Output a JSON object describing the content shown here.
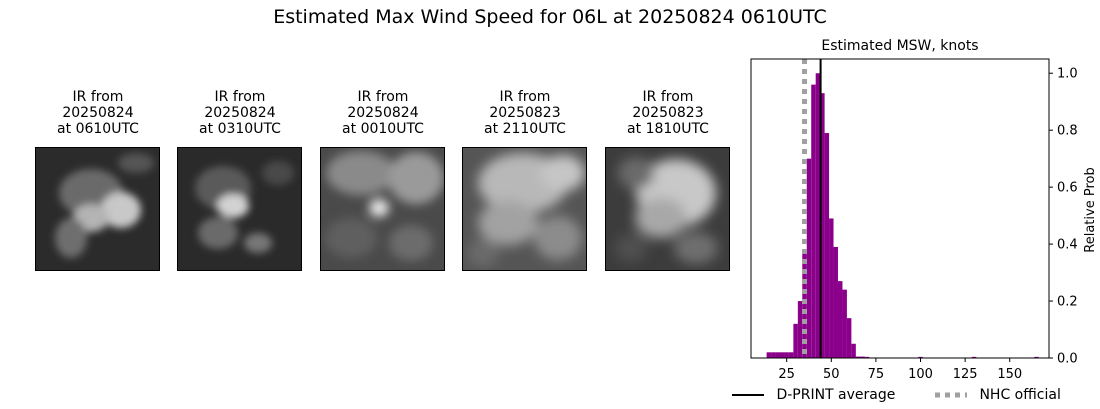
{
  "main_title": "Estimated Max Wind Speed for 06L at 20250824 0610UTC",
  "panels": [
    {
      "label": "IR from\n20250824\nat 0610UTC"
    },
    {
      "label": "IR from\n20250824\nat 0310UTC"
    },
    {
      "label": "IR from\n20250824\nat 0010UTC"
    },
    {
      "label": "IR from\n20250823\nat 2110UTC"
    },
    {
      "label": "IR from\n20250823\nat 1810UTC"
    }
  ],
  "chart_data": {
    "type": "bar",
    "title": "Estimated MSW, knots",
    "xlabel": "",
    "ylabel": "Relative Prob",
    "xlim": [
      5,
      172
    ],
    "ylim": [
      0,
      1.05
    ],
    "xticks": [
      25,
      50,
      75,
      100,
      125,
      150
    ],
    "yticks": [
      0.0,
      0.2,
      0.4,
      0.6,
      0.8,
      1.0
    ],
    "bin_width": 2.5,
    "bins": [
      {
        "x": 15,
        "y": 0.02
      },
      {
        "x": 17.5,
        "y": 0.02
      },
      {
        "x": 20,
        "y": 0.02
      },
      {
        "x": 22.5,
        "y": 0.02
      },
      {
        "x": 25,
        "y": 0.02
      },
      {
        "x": 27.5,
        "y": 0.02
      },
      {
        "x": 30,
        "y": 0.12
      },
      {
        "x": 32.5,
        "y": 0.2
      },
      {
        "x": 35,
        "y": 0.38
      },
      {
        "x": 37.5,
        "y": 0.7
      },
      {
        "x": 40,
        "y": 0.96
      },
      {
        "x": 42.5,
        "y": 1.0
      },
      {
        "x": 45,
        "y": 0.93
      },
      {
        "x": 47.5,
        "y": 0.79
      },
      {
        "x": 50,
        "y": 0.49
      },
      {
        "x": 52.5,
        "y": 0.39
      },
      {
        "x": 55,
        "y": 0.27
      },
      {
        "x": 57.5,
        "y": 0.24
      },
      {
        "x": 60,
        "y": 0.14
      },
      {
        "x": 62.5,
        "y": 0.05
      },
      {
        "x": 65,
        "y": 0.005
      },
      {
        "x": 67.5,
        "y": 0.005
      },
      {
        "x": 70,
        "y": 0.004
      },
      {
        "x": 100,
        "y": 0.004
      },
      {
        "x": 130,
        "y": 0.004
      },
      {
        "x": 165,
        "y": 0.004
      }
    ],
    "dprint_average": 44,
    "nhc_official": 35,
    "bar_color": "#8b008b",
    "dprint_color": "#000000",
    "nhc_color": "#a0a0a0",
    "legend": [
      {
        "label": "D-PRINT average",
        "style": "solid",
        "color": "#000000"
      },
      {
        "label": "NHC official",
        "style": "dotted",
        "color": "#a0a0a0"
      }
    ],
    "legend_position": "bottom"
  }
}
